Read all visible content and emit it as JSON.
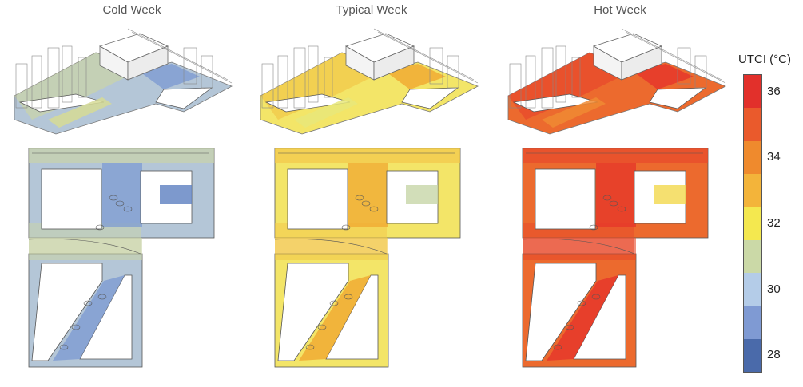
{
  "panels": [
    {
      "title": "Cold Week",
      "base": "#b4c6d7",
      "mid": "#c9d3a9",
      "hot": "#7e9bd2",
      "soft": "#d6db95",
      "accent": "#5c7fc1"
    },
    {
      "title": "Typical Week",
      "base": "#f3e568",
      "mid": "#f2c84a",
      "hot": "#f0a730",
      "soft": "#e7e77a",
      "accent": "#c7d6a8"
    },
    {
      "title": "Hot Week",
      "base": "#ec6a2e",
      "mid": "#e84a2c",
      "hot": "#e6352a",
      "soft": "#f08a32",
      "accent": "#f2d84c"
    }
  ],
  "legend": {
    "title": "UTCI (°C)",
    "colors": [
      "#e2302b",
      "#ea5a2c",
      "#ef8a2d",
      "#f3b43a",
      "#f4e84f",
      "#cbd9a7",
      "#b4cce8",
      "#7f9ad3",
      "#4a6aaa"
    ],
    "ticks": [
      {
        "label": "36",
        "value": 36
      },
      {
        "label": "34",
        "value": 34
      },
      {
        "label": "32",
        "value": 32
      },
      {
        "label": "30",
        "value": 30
      },
      {
        "label": "28",
        "value": 28
      }
    ],
    "range": [
      27.5,
      36.5
    ]
  }
}
